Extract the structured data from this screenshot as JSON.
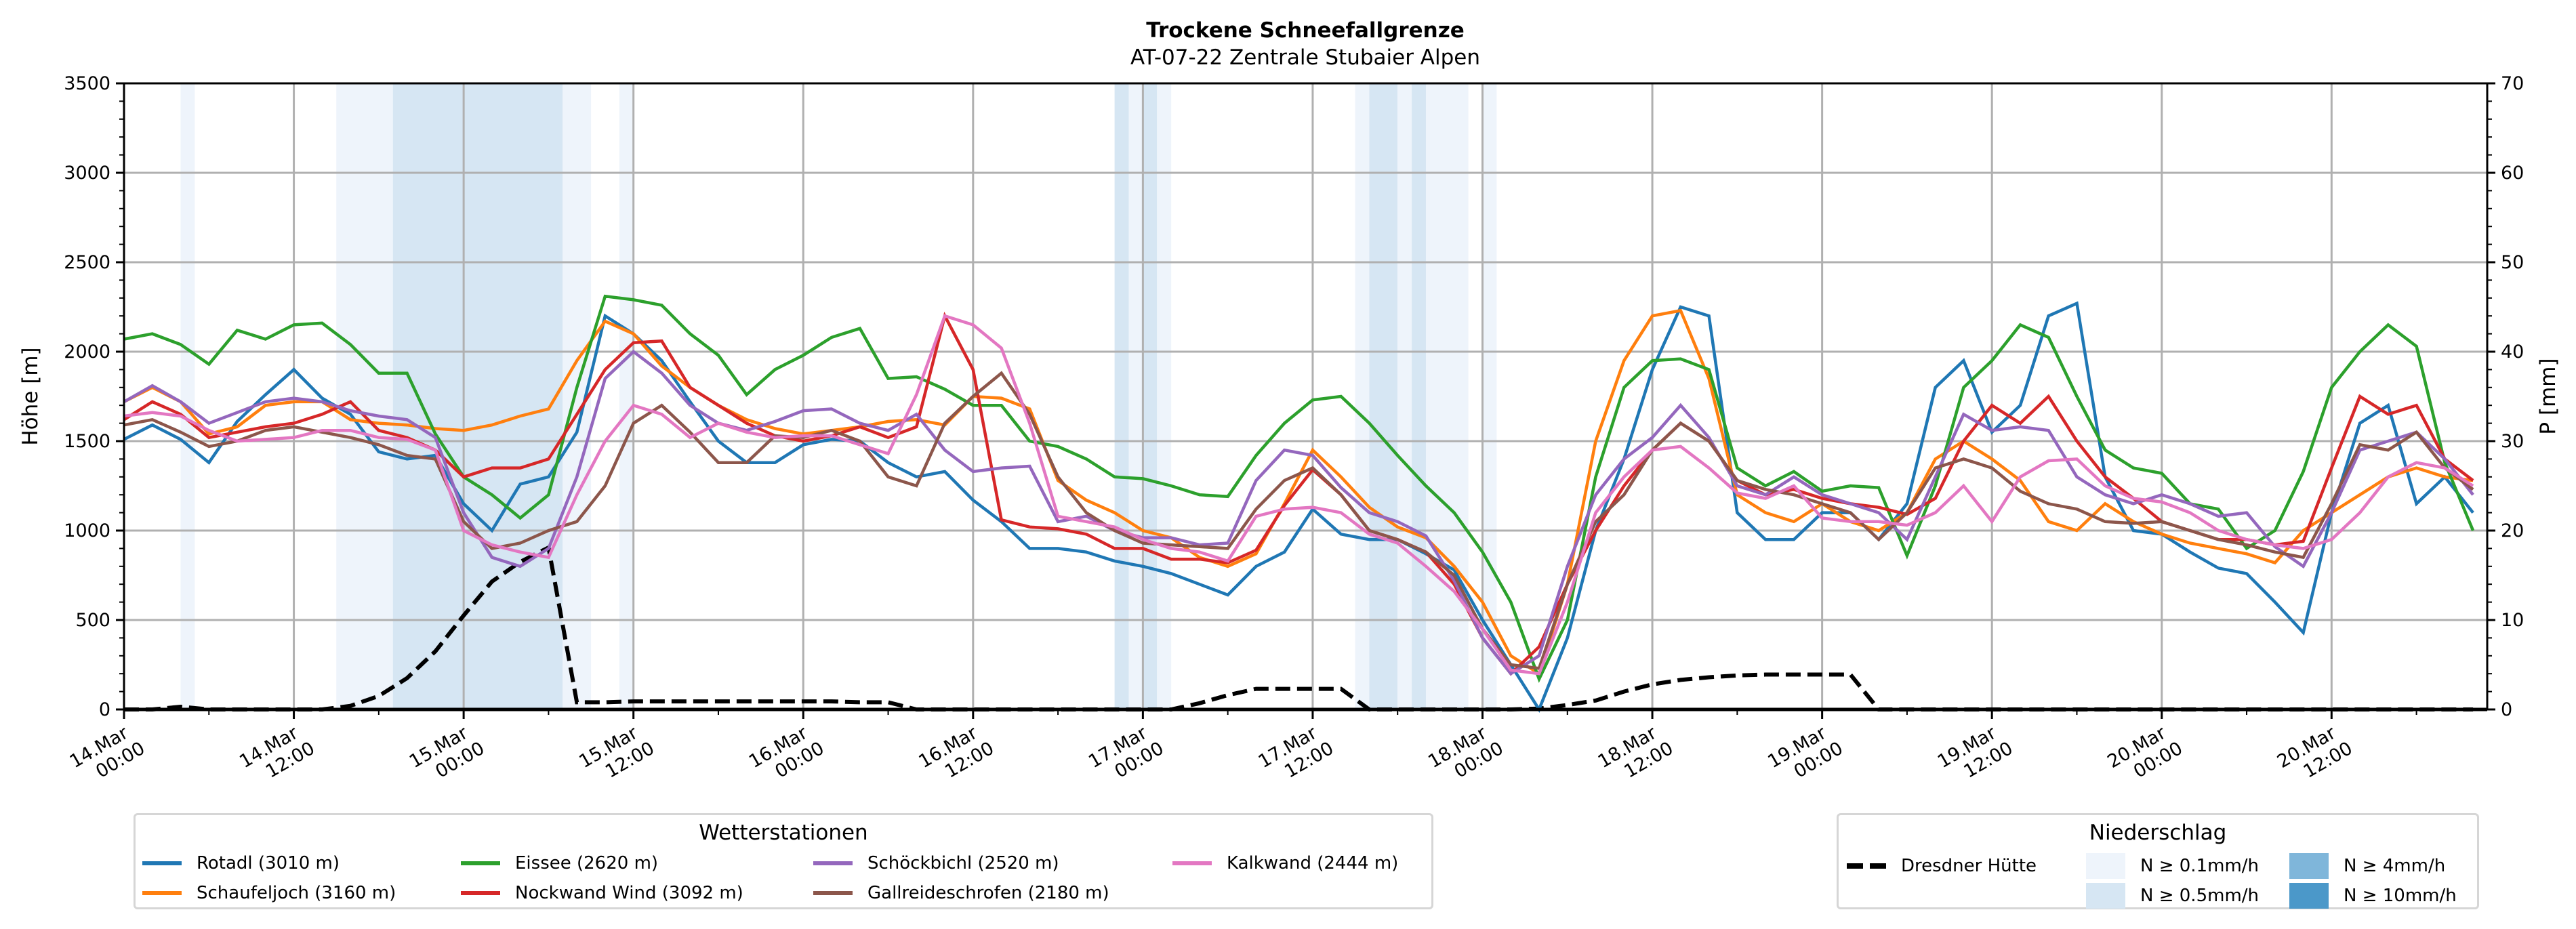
{
  "chart_data": {
    "type": "line",
    "title": "Trockene Schneefallgrenze",
    "subtitle": "AT-07-22 Zentrale Stubaier Alpen",
    "ylabel": "Höhe [m]",
    "y2label": "P [mm]",
    "ylim": [
      0,
      3500
    ],
    "y2lim": [
      0,
      70
    ],
    "yticks": [
      "0",
      "500",
      "1000",
      "1500",
      "2000",
      "2500",
      "3000",
      "3500"
    ],
    "y2ticks": [
      "0",
      "10",
      "20",
      "30",
      "40",
      "50",
      "60",
      "70"
    ],
    "x_unit": "hours since 14.Mar 00:00",
    "xlim": [
      0,
      167
    ],
    "xticks": [
      {
        "h": 0,
        "line1": "14.Mar",
        "line2": "00:00"
      },
      {
        "h": 12,
        "line1": "14.Mar",
        "line2": "12:00"
      },
      {
        "h": 24,
        "line1": "15.Mar",
        "line2": "00:00"
      },
      {
        "h": 36,
        "line1": "15.Mar",
        "line2": "12:00"
      },
      {
        "h": 48,
        "line1": "16.Mar",
        "line2": "00:00"
      },
      {
        "h": 60,
        "line1": "16.Mar",
        "line2": "12:00"
      },
      {
        "h": 72,
        "line1": "17.Mar",
        "line2": "00:00"
      },
      {
        "h": 84,
        "line1": "17.Mar",
        "line2": "12:00"
      },
      {
        "h": 96,
        "line1": "18.Mar",
        "line2": "00:00"
      },
      {
        "h": 108,
        "line1": "18.Mar",
        "line2": "12:00"
      },
      {
        "h": 120,
        "line1": "19.Mar",
        "line2": "00:00"
      },
      {
        "h": 132,
        "line1": "19.Mar",
        "line2": "12:00"
      },
      {
        "h": 144,
        "line1": "20.Mar",
        "line2": "00:00"
      },
      {
        "h": 156,
        "line1": "20.Mar",
        "line2": "12:00"
      }
    ],
    "grid": true,
    "x": [
      0,
      2,
      4,
      6,
      8,
      10,
      12,
      14,
      16,
      18,
      20,
      22,
      24,
      26,
      28,
      30,
      32,
      34,
      36,
      38,
      40,
      42,
      44,
      46,
      48,
      50,
      52,
      54,
      56,
      58,
      60,
      62,
      64,
      66,
      68,
      70,
      72,
      74,
      76,
      78,
      80,
      82,
      84,
      86,
      88,
      90,
      92,
      94,
      96,
      98,
      100,
      102,
      104,
      106,
      108,
      110,
      112,
      114,
      116,
      118,
      120,
      122,
      124,
      126,
      128,
      130,
      132,
      134,
      136,
      138,
      140,
      142,
      144,
      146,
      148,
      150,
      152,
      154,
      156,
      158,
      160,
      162,
      164,
      166
    ],
    "series": [
      {
        "name": "Rotadl (3010 m)",
        "color": "#1f77b4",
        "values": [
          1510,
          1590,
          1510,
          1380,
          1610,
          1760,
          1900,
          1740,
          1650,
          1440,
          1400,
          1420,
          1150,
          1000,
          1260,
          1300,
          1550,
          2200,
          2100,
          1950,
          1720,
          1500,
          1380,
          1380,
          1480,
          1510,
          1500,
          1380,
          1300,
          1330,
          1170,
          1050,
          900,
          900,
          880,
          830,
          800,
          760,
          700,
          640,
          800,
          880,
          1120,
          980,
          950,
          950,
          870,
          780,
          500,
          250,
          0,
          400,
          1000,
          1400,
          1900,
          2250,
          2200,
          1100,
          950,
          950,
          1100,
          1100,
          950,
          1150,
          1800,
          1950,
          1550,
          1700,
          2200,
          2270,
          1300,
          1000,
          980,
          880,
          790,
          760,
          600,
          430,
          1100,
          1600,
          1700,
          1150,
          1300,
          1100
        ]
      },
      {
        "name": "Schaufeljoch (3160 m)",
        "color": "#ff7f0e",
        "values": [
          1720,
          1800,
          1720,
          1540,
          1580,
          1700,
          1720,
          1720,
          1620,
          1600,
          1590,
          1570,
          1560,
          1590,
          1640,
          1680,
          1950,
          2170,
          2100,
          1920,
          1800,
          1700,
          1620,
          1570,
          1540,
          1560,
          1580,
          1610,
          1620,
          1590,
          1750,
          1740,
          1680,
          1280,
          1170,
          1100,
          1000,
          960,
          850,
          800,
          870,
          1150,
          1450,
          1300,
          1130,
          1020,
          960,
          800,
          600,
          300,
          200,
          700,
          1500,
          1950,
          2200,
          2230,
          1850,
          1200,
          1100,
          1050,
          1150,
          1050,
          1000,
          1100,
          1400,
          1500,
          1400,
          1280,
          1050,
          1000,
          1150,
          1050,
          980,
          930,
          900,
          870,
          820,
          1000,
          1100,
          1200,
          1300,
          1350,
          1300,
          1280
        ]
      },
      {
        "name": "Eissee (2620 m)",
        "color": "#2ca02c",
        "values": [
          2070,
          2100,
          2040,
          1930,
          2120,
          2070,
          2150,
          2160,
          2040,
          1880,
          1880,
          1540,
          1300,
          1200,
          1070,
          1200,
          1800,
          2310,
          2290,
          2260,
          2100,
          1980,
          1760,
          1900,
          1980,
          2080,
          2130,
          1850,
          1860,
          1790,
          1700,
          1700,
          1500,
          1470,
          1400,
          1300,
          1290,
          1250,
          1200,
          1190,
          1420,
          1600,
          1730,
          1750,
          1600,
          1420,
          1250,
          1100,
          880,
          600,
          170,
          500,
          1300,
          1800,
          1950,
          1960,
          1900,
          1350,
          1250,
          1330,
          1220,
          1250,
          1240,
          860,
          1250,
          1800,
          1950,
          2150,
          2080,
          1750,
          1450,
          1350,
          1320,
          1150,
          1120,
          900,
          1000,
          1330,
          1800,
          2000,
          2150,
          2030,
          1380,
          1000
        ]
      },
      {
        "name": "Nockwand Wind (3092 m)",
        "color": "#d62728",
        "values": [
          1620,
          1720,
          1650,
          1520,
          1550,
          1580,
          1600,
          1650,
          1720,
          1560,
          1520,
          1450,
          1300,
          1350,
          1350,
          1400,
          1650,
          1900,
          2050,
          2060,
          1800,
          1700,
          1600,
          1530,
          1500,
          1530,
          1580,
          1520,
          1580,
          2200,
          1900,
          1060,
          1020,
          1010,
          980,
          900,
          900,
          840,
          840,
          820,
          890,
          1140,
          1340,
          1200,
          1000,
          950,
          880,
          700,
          400,
          200,
          350,
          700,
          1000,
          1250,
          1450,
          1600,
          1500,
          1280,
          1200,
          1230,
          1180,
          1150,
          1130,
          1090,
          1180,
          1500,
          1700,
          1600,
          1750,
          1500,
          1300,
          1180,
          1050,
          1000,
          950,
          950,
          920,
          940,
          1350,
          1750,
          1650,
          1700,
          1400,
          1280
        ]
      },
      {
        "name": "Schöckbichl (2520 m)",
        "color": "#9467bd",
        "values": [
          1720,
          1810,
          1720,
          1600,
          1660,
          1720,
          1740,
          1720,
          1670,
          1640,
          1620,
          1520,
          1100,
          850,
          800,
          900,
          1300,
          1850,
          2000,
          1880,
          1700,
          1600,
          1560,
          1610,
          1670,
          1680,
          1600,
          1560,
          1650,
          1450,
          1330,
          1350,
          1360,
          1050,
          1080,
          1000,
          960,
          960,
          920,
          930,
          1280,
          1450,
          1420,
          1240,
          1100,
          1050,
          970,
          720,
          400,
          200,
          300,
          800,
          1200,
          1400,
          1520,
          1700,
          1520,
          1250,
          1200,
          1300,
          1200,
          1150,
          1100,
          950,
          1300,
          1650,
          1560,
          1580,
          1560,
          1300,
          1200,
          1150,
          1200,
          1150,
          1080,
          1100,
          910,
          800,
          1100,
          1450,
          1500,
          1550,
          1400,
          1200
        ]
      },
      {
        "name": "Gallreideschrofen (2180 m)",
        "color": "#8c564b",
        "values": [
          1590,
          1620,
          1550,
          1470,
          1500,
          1560,
          1580,
          1550,
          1520,
          1480,
          1420,
          1400,
          1050,
          900,
          930,
          1000,
          1050,
          1250,
          1600,
          1700,
          1550,
          1380,
          1380,
          1530,
          1520,
          1560,
          1500,
          1300,
          1250,
          1600,
          1750,
          1880,
          1650,
          1300,
          1100,
          1000,
          930,
          920,
          910,
          900,
          1120,
          1280,
          1350,
          1200,
          1000,
          950,
          880,
          750,
          450,
          250,
          230,
          700,
          1050,
          1200,
          1450,
          1600,
          1500,
          1280,
          1230,
          1200,
          1150,
          1100,
          950,
          1100,
          1350,
          1400,
          1350,
          1220,
          1150,
          1120,
          1050,
          1040,
          1050,
          1000,
          950,
          920,
          880,
          850,
          1150,
          1480,
          1450,
          1550,
          1350,
          1230
        ]
      },
      {
        "name": "Kalkwand (2444 m)",
        "color": "#e377c2",
        "values": [
          1640,
          1660,
          1640,
          1560,
          1500,
          1510,
          1520,
          1560,
          1560,
          1520,
          1510,
          1450,
          1000,
          920,
          880,
          850,
          1200,
          1500,
          1700,
          1650,
          1520,
          1600,
          1550,
          1520,
          1530,
          1530,
          1480,
          1430,
          1760,
          2200,
          2150,
          2020,
          1600,
          1080,
          1050,
          1020,
          950,
          900,
          880,
          830,
          1080,
          1120,
          1130,
          1100,
          980,
          930,
          800,
          660,
          450,
          220,
          200,
          600,
          1100,
          1300,
          1450,
          1470,
          1350,
          1210,
          1180,
          1250,
          1070,
          1050,
          1050,
          1030,
          1100,
          1250,
          1050,
          1300,
          1390,
          1400,
          1250,
          1180,
          1160,
          1100,
          1000,
          950,
          920,
          900,
          950,
          1100,
          1300,
          1380,
          1350,
          1250
        ]
      }
    ],
    "reference_line": {
      "name": "Dresdner Hütte",
      "axis": "P [mm]",
      "style": "dashed",
      "color": "#000000",
      "values": [
        0,
        0,
        0.3,
        0,
        0,
        0,
        0,
        0,
        0.4,
        1.5,
        3.5,
        6.5,
        10.5,
        14.3,
        16.5,
        18.1,
        0.8,
        0.8,
        0.9,
        0.9,
        0.9,
        0.9,
        0.9,
        0.9,
        0.9,
        0.9,
        0.8,
        0.8,
        0,
        0,
        0,
        0,
        0,
        0,
        0,
        0,
        0,
        0,
        0.7,
        1.6,
        2.3,
        2.3,
        2.3,
        2.3,
        0,
        0,
        0,
        0,
        0,
        0,
        0.1,
        0.5,
        1.0,
        2.0,
        2.8,
        3.3,
        3.6,
        3.8,
        3.9,
        3.9,
        3.9,
        3.9,
        0,
        0,
        0,
        0,
        0,
        0,
        0,
        0,
        0,
        0,
        0,
        0,
        0,
        0,
        0,
        0,
        0,
        0,
        0,
        0,
        0,
        0
      ]
    },
    "precip_bands": [
      {
        "from": 4,
        "to": 5,
        "class": "N ≥ 0.1mm/h"
      },
      {
        "from": 15,
        "to": 19,
        "class": "N ≥ 0.1mm/h"
      },
      {
        "from": 19,
        "to": 31,
        "class": "N ≥ 0.5mm/h"
      },
      {
        "from": 31,
        "to": 33,
        "class": "N ≥ 0.1mm/h"
      },
      {
        "from": 35,
        "to": 36,
        "class": "N ≥ 0.1mm/h"
      },
      {
        "from": 70,
        "to": 71,
        "class": "N ≥ 0.5mm/h"
      },
      {
        "from": 71,
        "to": 72,
        "class": "N ≥ 0.1mm/h"
      },
      {
        "from": 72,
        "to": 73,
        "class": "N ≥ 0.5mm/h"
      },
      {
        "from": 73,
        "to": 74,
        "class": "N ≥ 0.1mm/h"
      },
      {
        "from": 87,
        "to": 88,
        "class": "N ≥ 0.1mm/h"
      },
      {
        "from": 88,
        "to": 90,
        "class": "N ≥ 0.5mm/h"
      },
      {
        "from": 90,
        "to": 91,
        "class": "N ≥ 0.1mm/h"
      },
      {
        "from": 91,
        "to": 92,
        "class": "N ≥ 0.5mm/h"
      },
      {
        "from": 92,
        "to": 95,
        "class": "N ≥ 0.1mm/h"
      },
      {
        "from": 96,
        "to": 97,
        "class": "N ≥ 0.1mm/h"
      }
    ],
    "precip_classes": [
      {
        "label": "N ≥ 0.1mm/h",
        "color": "#eef4fb"
      },
      {
        "label": "N ≥ 0.5mm/h",
        "color": "#d6e6f3"
      },
      {
        "label": "N ≥ 4mm/h",
        "color": "#7fb6da"
      },
      {
        "label": "N ≥ 10mm/h",
        "color": "#4b98c9"
      }
    ],
    "legend_stations_title": "Wetterstationen",
    "legend_stations_placement": "bottom-left",
    "legend_precip_title": "Niederschlag",
    "legend_precip_placement": "bottom-right"
  }
}
